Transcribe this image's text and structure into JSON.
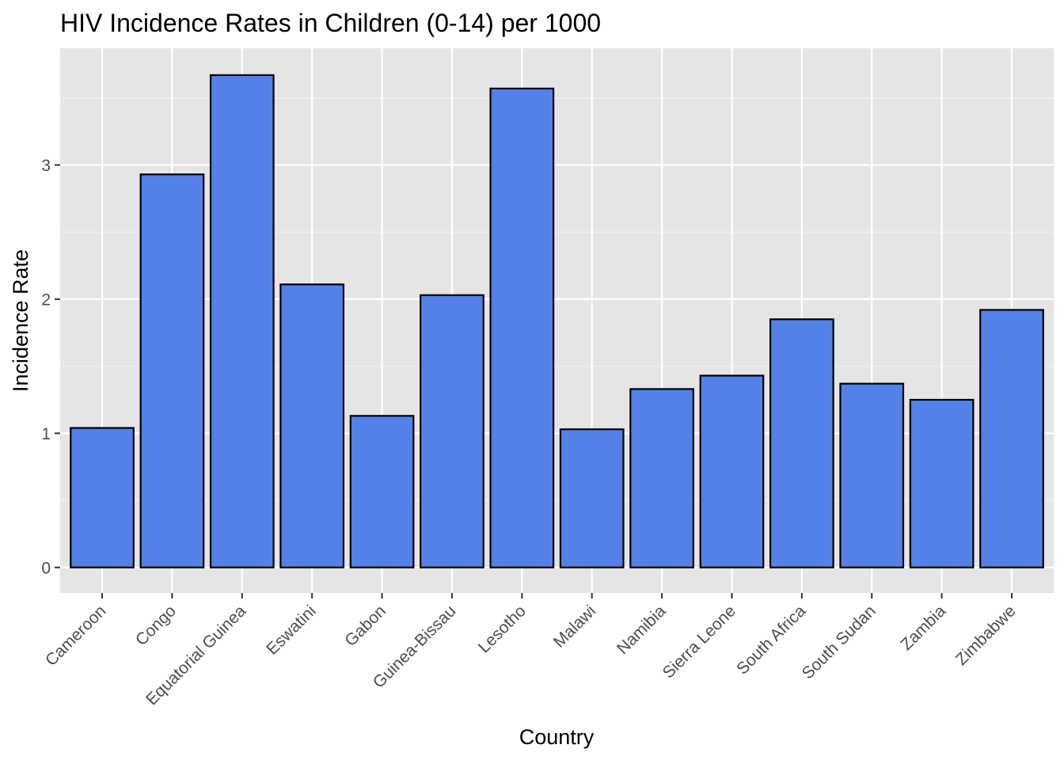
{
  "chart_data": {
    "type": "bar",
    "title": "HIV Incidence Rates in Children (0-14) per 1000",
    "xlabel": "Country",
    "ylabel": "Incidence Rate",
    "categories": [
      "Cameroon",
      "Congo",
      "Equatorial Guinea",
      "Eswatini",
      "Gabon",
      "Guinea-Bissau",
      "Lesotho",
      "Malawi",
      "Namibia",
      "Sierra Leone",
      "South Africa",
      "South Sudan",
      "Zambia",
      "Zimbabwe"
    ],
    "values": [
      1.04,
      2.93,
      3.67,
      2.11,
      1.13,
      2.03,
      3.57,
      1.03,
      1.33,
      1.43,
      1.85,
      1.37,
      1.25,
      1.92
    ],
    "yticks": [
      0,
      1,
      2,
      3
    ],
    "ylim": [
      -0.19,
      3.87
    ],
    "grid": true,
    "legend": "none",
    "colors": {
      "bar_fill": "#5381E8",
      "bar_stroke": "#000000",
      "panel_background": "#E5E5E5",
      "grid_major": "#FFFFFF",
      "grid_minor": "#F2F2F2"
    }
  }
}
